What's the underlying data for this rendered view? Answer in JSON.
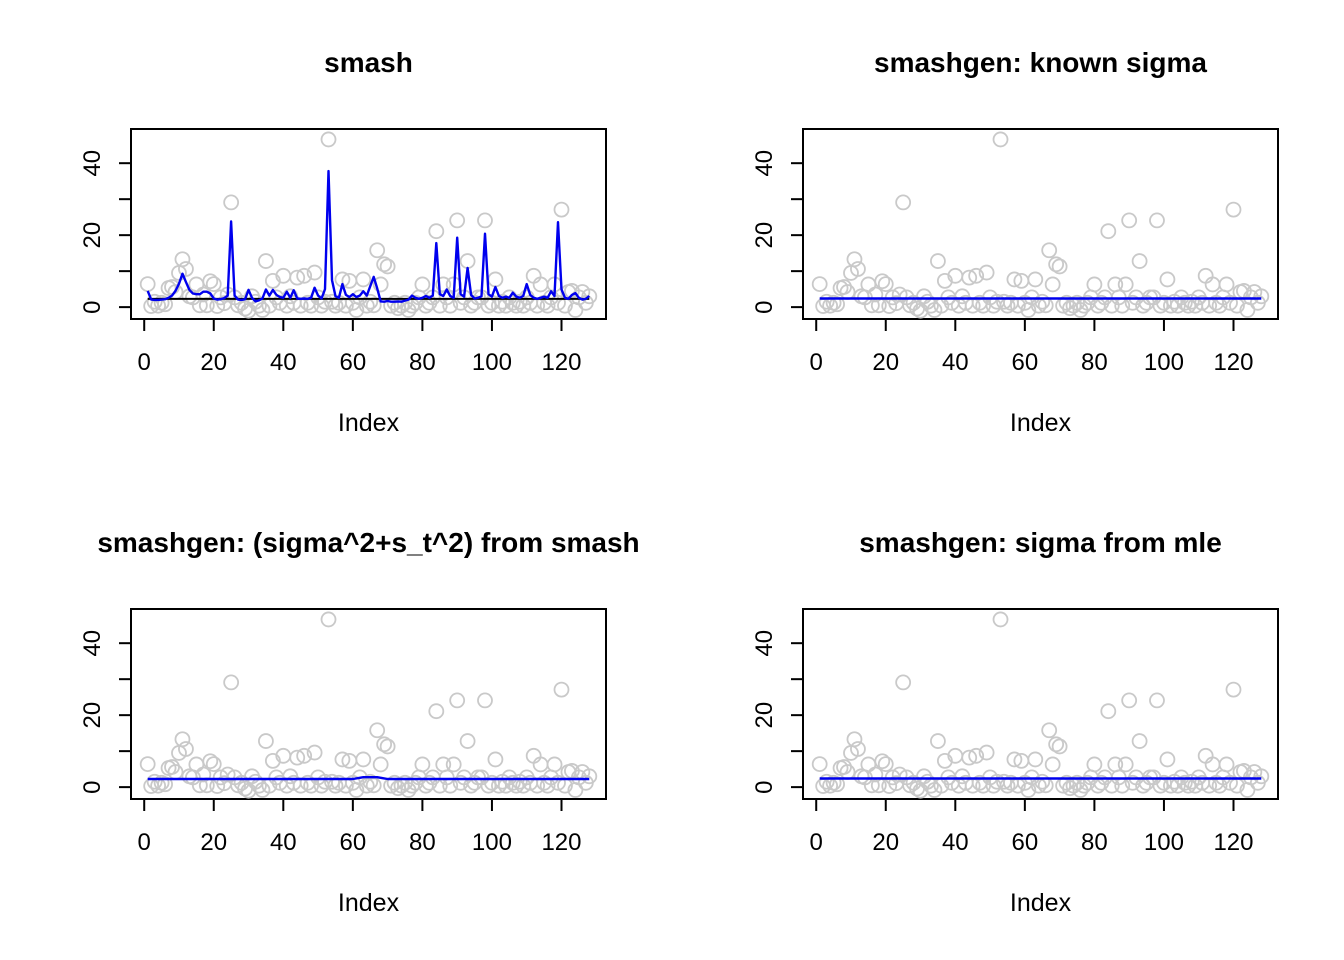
{
  "figure": {
    "background": "#ffffff"
  },
  "chart_data": {
    "type": "scatter",
    "layout": "2x2-grid",
    "axes": {
      "xlabel": "Index",
      "xticks": [
        0,
        20,
        40,
        60,
        80,
        100,
        120
      ],
      "xtick_labels": [
        "0",
        "20",
        "40",
        "60",
        "80",
        "100",
        "120"
      ],
      "yticks": [
        0,
        10,
        20,
        30,
        40
      ],
      "ytick_labels": [
        "0",
        "",
        "20",
        "",
        "40"
      ],
      "xlim": [
        -3.8,
        132.8
      ],
      "ylim": [
        -3.3,
        49.5
      ],
      "grid": false
    },
    "colors": {
      "line": "#0000ee",
      "point": "#c9c9c9",
      "axis": "#000000",
      "text": "#000000",
      "black_line": "#000000"
    },
    "shared_scatter": {
      "x_start": 1,
      "y": [
        6.4,
        0.3,
        1.5,
        0.4,
        1.2,
        0.8,
        5.3,
        5.6,
        4.2,
        9.5,
        13.3,
        10.6,
        3.0,
        2.7,
        6.3,
        0.5,
        3.5,
        0.5,
        7.2,
        6.4,
        0.3,
        2.7,
        1.1,
        3.5,
        29.1,
        2.7,
        0.5,
        1.2,
        -0.4,
        -1.0,
        3.0,
        1.5,
        0.4,
        -0.8,
        12.8,
        0.4,
        7.3,
        2.7,
        1.2,
        8.7,
        0.4,
        3.0,
        1.2,
        8.2,
        0.4,
        8.7,
        1.2,
        0.4,
        9.6,
        2.7,
        0.4,
        1.5,
        46.6,
        1.5,
        0.4,
        1.2,
        7.7,
        0.4,
        7.3,
        1.2,
        -0.8,
        2.7,
        7.7,
        0.4,
        1.5,
        0.5,
        15.8,
        6.3,
        11.9,
        11.3,
        0.4,
        1.2,
        -0.3,
        0.4,
        1.2,
        -0.8,
        0.4,
        1.2,
        2.7,
        6.3,
        0.4,
        1.2,
        2.7,
        21.1,
        0.4,
        6.3,
        2.7,
        0.4,
        6.3,
        24.1,
        1.2,
        2.7,
        12.8,
        0.4,
        1.2,
        2.7,
        2.7,
        24.1,
        0.4,
        1.2,
        7.7,
        0.4,
        1.5,
        0.4,
        2.7,
        1.2,
        0.4,
        1.5,
        0.4,
        2.7,
        1.2,
        8.7,
        0.4,
        6.3,
        1.2,
        0.4,
        2.7,
        6.3,
        1.2,
        27.1,
        0.4,
        4.2,
        4.5,
        -0.8,
        2.7,
        4.2,
        1.2,
        3.0
      ]
    },
    "panels": [
      {
        "title": "smash",
        "xlabel": "Index",
        "black_line": {
          "y": 2.3,
          "x1": 1,
          "x2": 128
        },
        "line": {
          "fitted": [
            4.5,
            2.1,
            2.0,
            2.0,
            2.1,
            2.2,
            2.6,
            3.2,
            4.5,
            6.5,
            9.3,
            7.0,
            4.8,
            3.8,
            3.6,
            3.6,
            4.3,
            4.3,
            3.8,
            2.4,
            2.1,
            2.2,
            2.5,
            3.2,
            23.8,
            3.2,
            2.1,
            2.0,
            2.2,
            4.8,
            2.6,
            1.6,
            1.9,
            2.4,
            4.9,
            3.2,
            4.8,
            3.4,
            2.8,
            2.6,
            4.3,
            2.6,
            4.7,
            2.4,
            2.3,
            2.4,
            2.3,
            2.6,
            5.4,
            3.2,
            2.4,
            5.0,
            37.8,
            7.5,
            3.0,
            2.6,
            6.4,
            3.4,
            2.8,
            3.6,
            2.8,
            3.2,
            4.4,
            3.2,
            5.8,
            8.4,
            5.2,
            1.6,
            1.5,
            1.7,
            1.5,
            1.5,
            1.6,
            1.5,
            1.8,
            2.1,
            3.2,
            2.6,
            2.3,
            2.6,
            3.1,
            2.6,
            3.2,
            17.8,
            3.6,
            3.1,
            4.9,
            3.1,
            2.6,
            19.3,
            3.6,
            2.9,
            10.9,
            3.4,
            2.4,
            2.6,
            3.0,
            20.4,
            3.6,
            2.9,
            5.6,
            3.1,
            2.6,
            2.9,
            2.6,
            4.0,
            2.9,
            2.6,
            3.1,
            6.4,
            3.4,
            2.6,
            2.3,
            2.6,
            2.9,
            2.6,
            4.4,
            3.1,
            23.6,
            4.9,
            2.6,
            2.3,
            3.4,
            3.9,
            2.6,
            2.1,
            2.3,
            3.1
          ]
        }
      },
      {
        "title": "smashgen: known sigma",
        "xlabel": "Index",
        "line": {
          "vertices": [
            [
              1,
              2.4
            ],
            [
              128,
              2.4
            ]
          ]
        }
      },
      {
        "title": "smashgen: (sigma^2+s_t^2) from smash",
        "xlabel": "Index",
        "line": {
          "vertices": [
            [
              1,
              2.25
            ],
            [
              60,
              2.25
            ],
            [
              62,
              2.6
            ],
            [
              63,
              2.75
            ],
            [
              67,
              2.75
            ],
            [
              68,
              2.6
            ],
            [
              70,
              2.25
            ],
            [
              128,
              2.25
            ]
          ]
        }
      },
      {
        "title": "smashgen: sigma from mle",
        "xlabel": "Index",
        "line": {
          "vertices": [
            [
              1,
              2.4
            ],
            [
              128,
              2.4
            ]
          ]
        }
      }
    ]
  }
}
